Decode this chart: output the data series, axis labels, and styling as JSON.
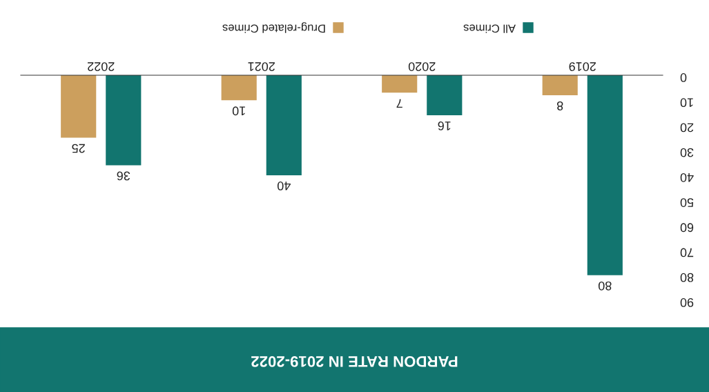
{
  "chart_data": {
    "type": "bar",
    "title": "PARDON RATE IN 2019-2022",
    "categories": [
      "2022",
      "2021",
      "2020",
      "2019"
    ],
    "series": [
      {
        "name": "All Crimes",
        "color": "#12756f",
        "values": [
          36,
          40,
          16,
          80
        ]
      },
      {
        "name": "Drug-related Crimes",
        "color": "#cc9f5d",
        "values": [
          25,
          10,
          7,
          8
        ]
      }
    ],
    "ylim": [
      90,
      0
    ],
    "yticks": [
      0,
      10,
      20,
      30,
      40,
      50,
      60,
      70,
      80,
      90
    ],
    "data_labels": true,
    "legend": "top",
    "grid": false
  }
}
